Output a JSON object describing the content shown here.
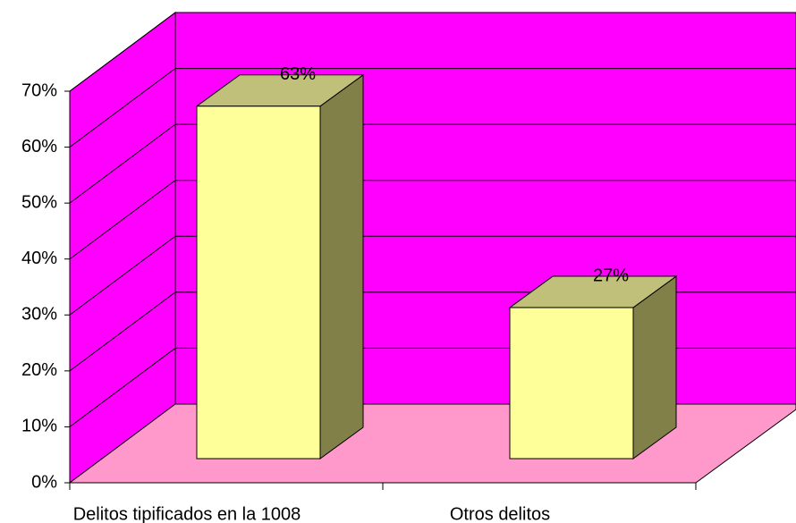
{
  "chart_data": {
    "type": "bar3d",
    "categories": [
      "Delitos tipificados en la 1008",
      "Otros delitos"
    ],
    "values": [
      63,
      27
    ],
    "value_labels": [
      "63%",
      "27%"
    ],
    "color": "#ffff99",
    "wall_color": "#ff00ff",
    "floor_color": "#ff99cc",
    "ylim": [
      0,
      70
    ],
    "yticks": [
      {
        "value": 0,
        "label": "0%"
      },
      {
        "value": 10,
        "label": "10%"
      },
      {
        "value": 20,
        "label": "20%"
      },
      {
        "value": 30,
        "label": "30%"
      },
      {
        "value": 40,
        "label": "40%"
      },
      {
        "value": 50,
        "label": "50%"
      },
      {
        "value": 60,
        "label": "60%"
      },
      {
        "value": 70,
        "label": "70%"
      }
    ],
    "grid": true
  }
}
